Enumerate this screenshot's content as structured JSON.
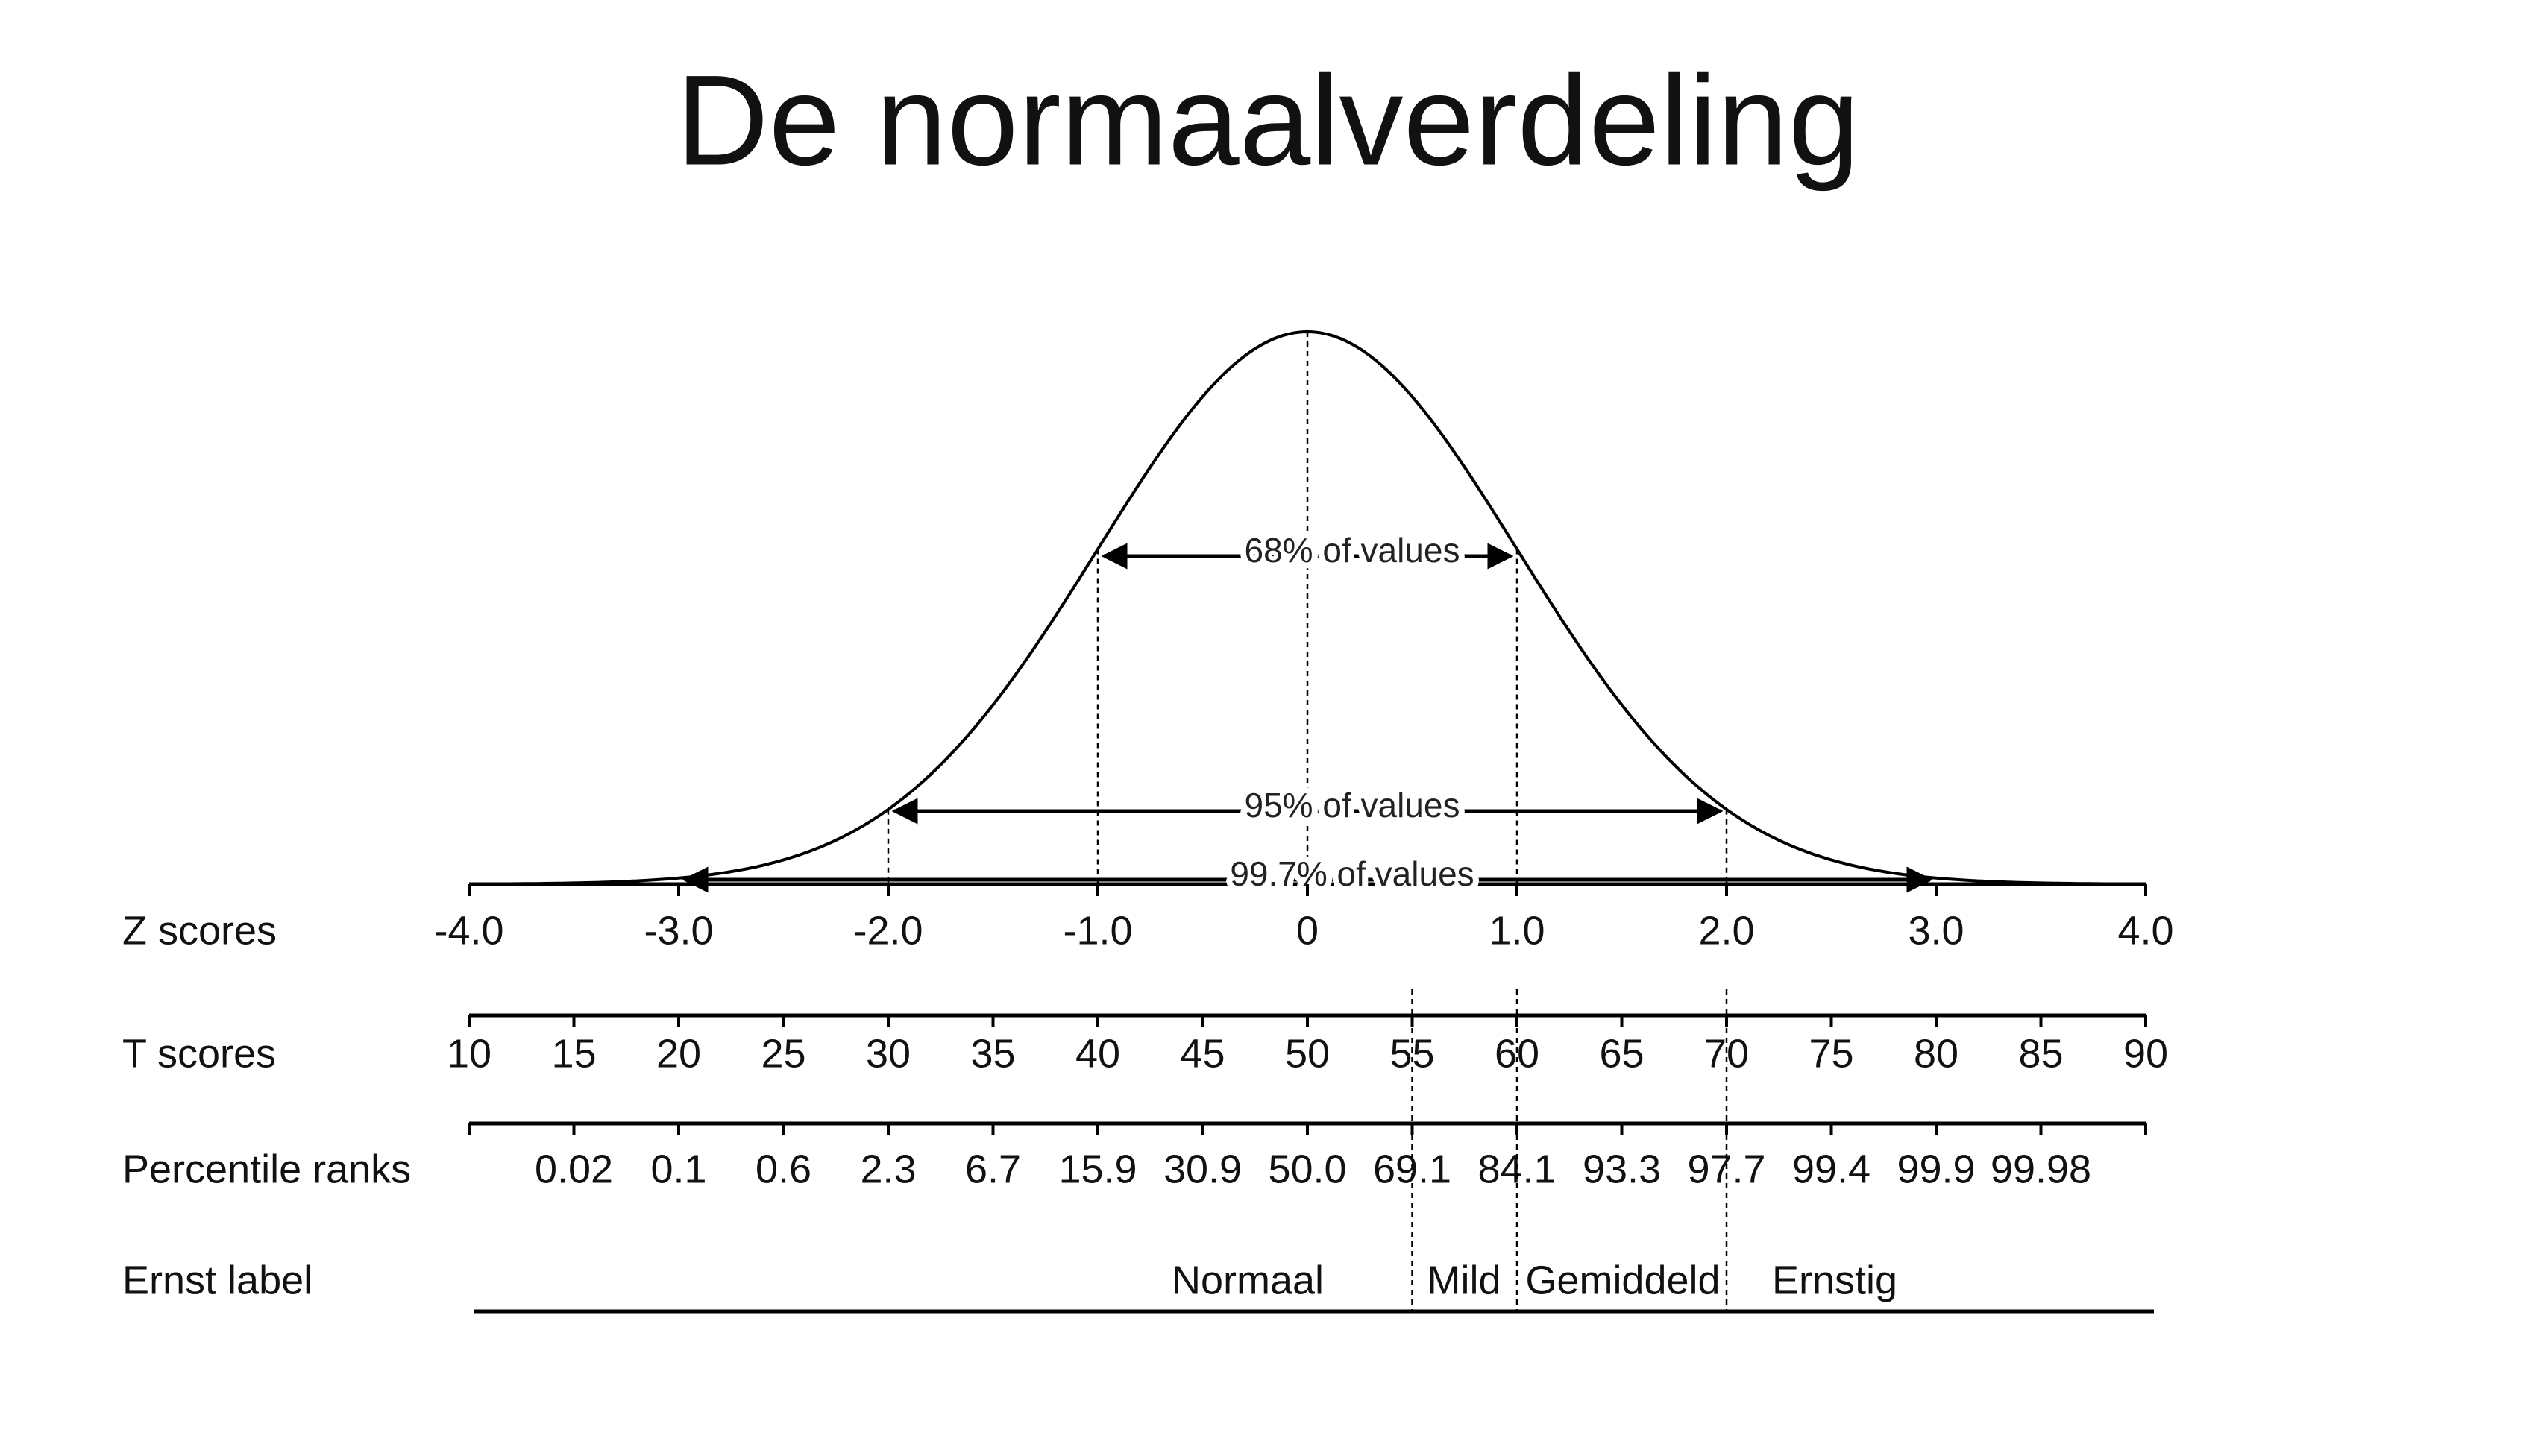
{
  "title": "De normaalverdeling",
  "annotations": [
    "68% of values",
    "95% of values",
    "99.7% of values"
  ],
  "rows": [
    {
      "label": "Z scores",
      "values": [
        "-4.0",
        "-3.0",
        "-2.0",
        "-1.0",
        "0",
        "1.0",
        "2.0",
        "3.0",
        "4.0"
      ]
    },
    {
      "label": "T scores",
      "values": [
        "10",
        "15",
        "20",
        "25",
        "30",
        "35",
        "40",
        "45",
        "50",
        "55",
        "60",
        "65",
        "70",
        "75",
        "80",
        "85",
        "90"
      ]
    },
    {
      "label": "Percentile ranks",
      "values": [
        "0.02",
        "0.1",
        "0.6",
        "2.3",
        "6.7",
        "15.9",
        "30.9",
        "50.0",
        "69.1",
        "84.1",
        "93.3",
        "97.7",
        "99.4",
        "99.9",
        "99.98"
      ]
    }
  ],
  "ernst": {
    "label": "Ernst label",
    "categories": [
      "Normaal",
      "Mild",
      "Gemiddeld",
      "Ernstig"
    ]
  }
}
